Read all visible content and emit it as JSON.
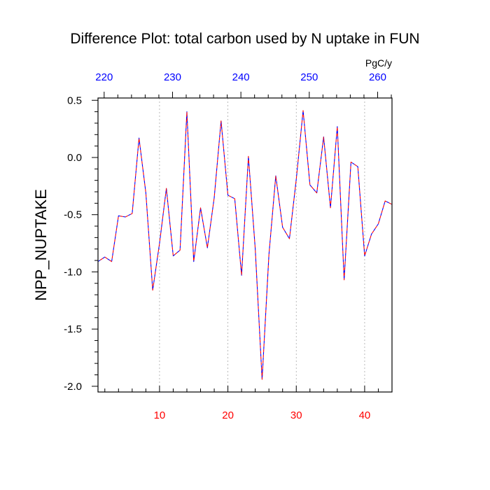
{
  "chart_data": {
    "type": "line",
    "title": "Difference Plot: total carbon used by N uptake in FUN",
    "ylabel": "NPP_NUPTAKE",
    "xlabel": "",
    "top_axis_units": "PgC/y",
    "xlim": [
      1,
      44
    ],
    "ylim": [
      -2.05,
      0.52
    ],
    "x_ticks": [
      10,
      20,
      30,
      40
    ],
    "y_ticks": [
      0.5,
      0.0,
      -0.5,
      -1.0,
      -1.5,
      -2.0
    ],
    "y_tick_labels": [
      "0.5",
      "0.0",
      "-0.5",
      "-1.0",
      "-1.5",
      "-2.0"
    ],
    "top_ticks": [
      {
        "label": "220",
        "x": 1.9
      },
      {
        "label": "230",
        "x": 11.9
      },
      {
        "label": "240",
        "x": 21.9
      },
      {
        "label": "250",
        "x": 31.9
      },
      {
        "label": "260",
        "x": 41.9
      }
    ],
    "grid": "vertical dotted at bottom ticks",
    "series": [
      {
        "line_colors": [
          "#0000ff",
          "#ff0000"
        ],
        "x": [
          1,
          2,
          3,
          4,
          5,
          6,
          7,
          8,
          9,
          10,
          11,
          12,
          13,
          14,
          15,
          16,
          17,
          18,
          19,
          20,
          21,
          22,
          23,
          24,
          25,
          26,
          27,
          28,
          29,
          30,
          31,
          32,
          33,
          34,
          35,
          36,
          37,
          38,
          39,
          40,
          41,
          42,
          43,
          44
        ],
        "values": [
          -0.91,
          -0.87,
          -0.91,
          -0.51,
          -0.52,
          -0.49,
          0.17,
          -0.31,
          -1.16,
          -0.75,
          -0.27,
          -0.86,
          -0.81,
          0.4,
          -0.91,
          -0.44,
          -0.79,
          -0.35,
          0.32,
          -0.33,
          -0.36,
          -1.03,
          0.01,
          -0.8,
          -1.94,
          -0.85,
          -0.16,
          -0.61,
          -0.71,
          -0.19,
          0.41,
          -0.24,
          -0.31,
          0.18,
          -0.44,
          0.27,
          -1.07,
          -0.04,
          -0.08,
          -0.86,
          -0.67,
          -0.58,
          -0.38,
          -0.41
        ]
      }
    ]
  }
}
